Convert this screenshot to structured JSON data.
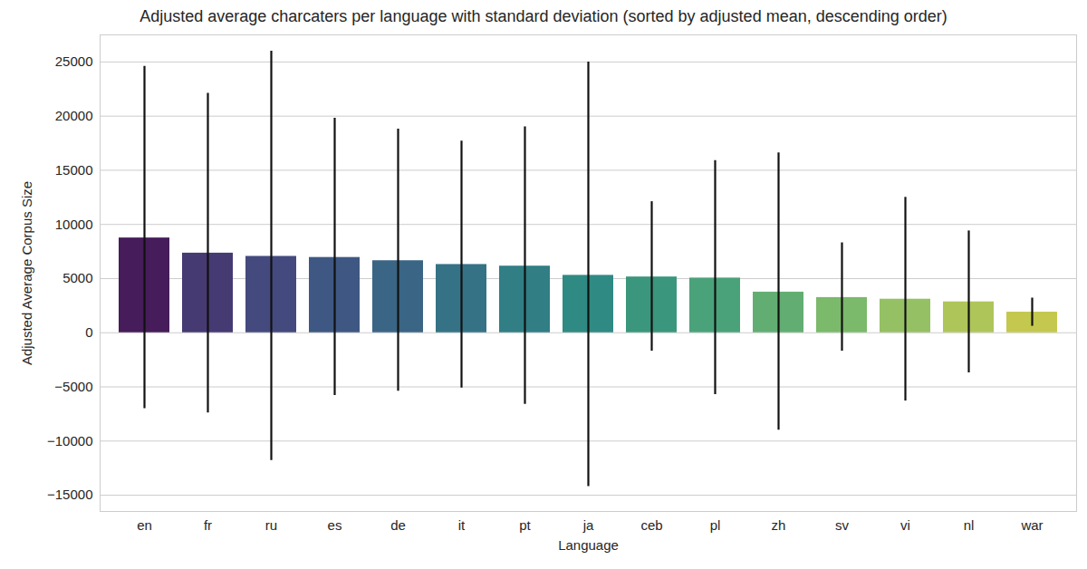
{
  "chart_data": {
    "type": "bar",
    "title": "Adjusted average charcaters per language with standard deviation (sorted by adjusted mean, descending order)",
    "x_label": "Language",
    "y_label": "Adjusted Average Corpus Size",
    "categories": [
      "en",
      "fr",
      "ru",
      "es",
      "de",
      "it",
      "pt",
      "ja",
      "ceb",
      "pl",
      "zh",
      "sv",
      "vi",
      "nl",
      "war"
    ],
    "values": [
      8750,
      7350,
      7050,
      6950,
      6650,
      6300,
      6150,
      5300,
      5150,
      5050,
      3750,
      3250,
      3100,
      2850,
      1900
    ],
    "error_low": [
      -7000,
      -7400,
      -11800,
      -5800,
      -5400,
      -5100,
      -6600,
      -14200,
      -1700,
      -5700,
      -9000,
      -1700,
      -6300,
      -3700,
      600
    ],
    "error_high": [
      24600,
      22100,
      26000,
      19800,
      18800,
      17700,
      19000,
      25000,
      12100,
      15900,
      16600,
      8300,
      12500,
      9400,
      3200
    ],
    "colors": [
      "#461c5a",
      "#463a73",
      "#444a7e",
      "#3e5883",
      "#3a6585",
      "#357285",
      "#317e85",
      "#2f8a83",
      "#3a967c",
      "#4aa27a",
      "#62ae72",
      "#7bb96b",
      "#95c063",
      "#aec55a",
      "#c4c84e"
    ],
    "ylim": [
      -16500,
      27500
    ],
    "yticks": [
      {
        "value": -15000,
        "label": "−15000"
      },
      {
        "value": -10000,
        "label": "−10000"
      },
      {
        "value": -5000,
        "label": "−5000"
      },
      0,
      5000,
      10000,
      15000,
      20000,
      25000
    ],
    "grid": true
  }
}
